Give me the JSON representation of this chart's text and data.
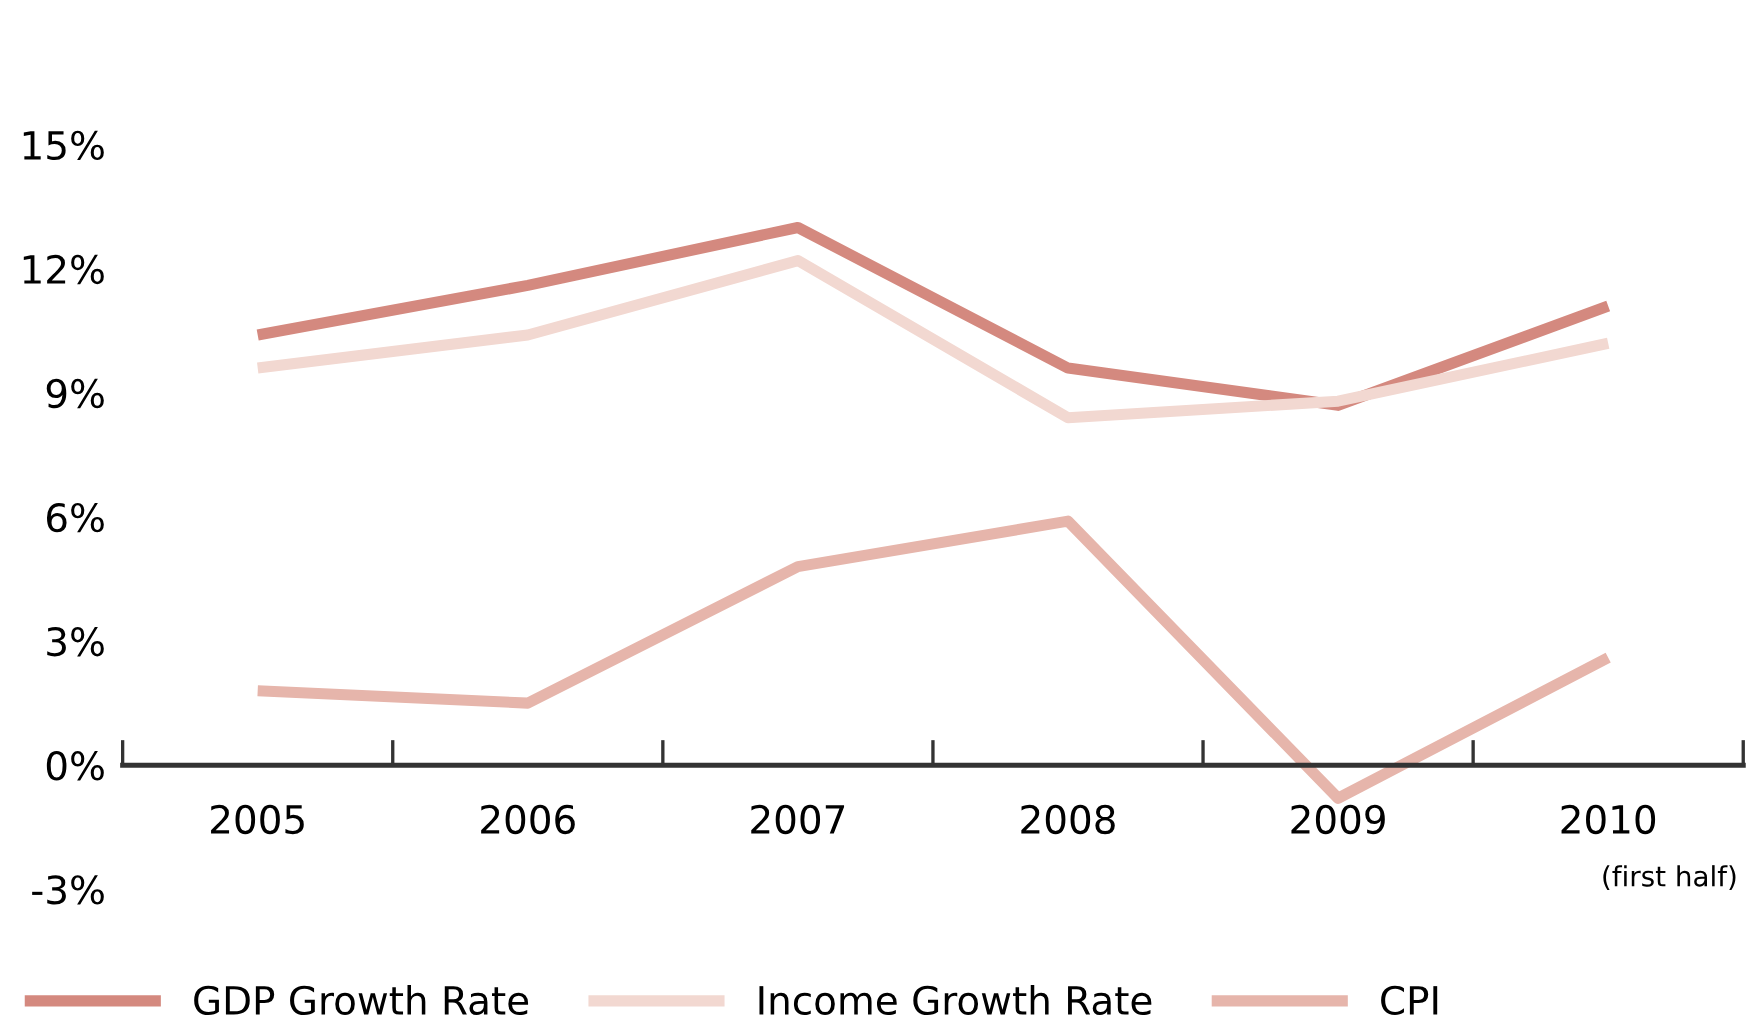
{
  "chart_data": {
    "type": "line",
    "categories": [
      "2005",
      "2006",
      "2007",
      "2008",
      "2009",
      "2010"
    ],
    "series": [
      {
        "name": "GDP Growth Rate",
        "color": "#d4897f",
        "values": [
          10.4,
          11.6,
          13.0,
          9.6,
          8.7,
          11.1
        ]
      },
      {
        "name": "Income Growth Rate",
        "color": "#f2d8d1",
        "values": [
          9.6,
          10.4,
          12.2,
          8.4,
          8.8,
          10.2
        ]
      },
      {
        "name": "CPI",
        "color": "#e6b5ab",
        "values": [
          1.8,
          1.5,
          4.8,
          5.9,
          -0.8,
          2.6
        ]
      }
    ],
    "ylim": [
      -3,
      15
    ],
    "yticks": [
      {
        "value": -3,
        "label": "-3%"
      },
      {
        "value": 0,
        "label": "0%"
      },
      {
        "value": 3,
        "label": "3%"
      },
      {
        "value": 6,
        "label": "6%"
      },
      {
        "value": 9,
        "label": "9%"
      },
      {
        "value": 12,
        "label": "12%"
      },
      {
        "value": 15,
        "label": "15%"
      }
    ],
    "annotations": [
      "(first half)"
    ],
    "grid": false,
    "legend": "bottom",
    "marker": "none",
    "line_style": "solid"
  }
}
